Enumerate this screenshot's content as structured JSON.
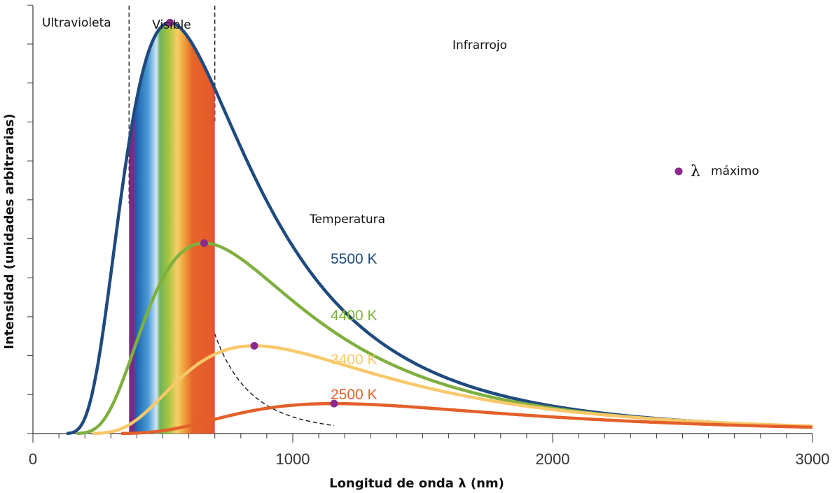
{
  "chart_data": {
    "type": "line",
    "xlabel": "Longitud de onda λ (nm)",
    "ylabel": "Intensidad (unidades arbitrarias)",
    "xlim": [
      0,
      3000
    ],
    "ylim": [
      0,
      10
    ],
    "x_ticks": [
      0,
      1000,
      2000,
      3000
    ],
    "regions": [
      {
        "label": "Ultravioleta",
        "from": 0,
        "to": 370
      },
      {
        "label": "Visible",
        "from": 370,
        "to": 700
      },
      {
        "label": "Infrarrojo",
        "from": 700,
        "to": 3000
      }
    ],
    "legend_title": "Temperatura",
    "marker_legend": {
      "symbol": "λ",
      "label": "máximo"
    },
    "colors": {
      "5500 K": "#1f4a7e",
      "4400 K": "#7fb03f",
      "3400 K": "#f8c86a",
      "2500 K": "#e3602a",
      "peak_marker": "#8a2a8e",
      "boundary": "#222222"
    },
    "series": [
      {
        "name": "5500 K",
        "temperature_K": 5500,
        "peak": {
          "x": 527,
          "y": 9.6
        }
      },
      {
        "name": "4400 K",
        "temperature_K": 4400,
        "peak": {
          "x": 659,
          "y": 4.45
        }
      },
      {
        "name": "3400 K",
        "temperature_K": 3400,
        "peak": {
          "x": 852,
          "y": 2.05
        }
      },
      {
        "name": "2500 K",
        "temperature_K": 2500,
        "peak": {
          "x": 1159,
          "y": 0.7
        }
      }
    ]
  }
}
